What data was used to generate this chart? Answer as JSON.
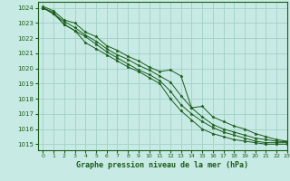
{
  "title": "Graphe pression niveau de la mer (hPa)",
  "bg_color": "#c8eae4",
  "grid_color": "#a0d0c8",
  "line_color": "#1a5c1a",
  "marker_color": "#1a5c1a",
  "xlim": [
    -0.5,
    23
  ],
  "ylim": [
    1014.6,
    1024.4
  ],
  "yticks": [
    1015,
    1016,
    1017,
    1018,
    1019,
    1020,
    1021,
    1022,
    1023,
    1024
  ],
  "xticks": [
    0,
    1,
    2,
    3,
    4,
    5,
    6,
    7,
    8,
    9,
    10,
    11,
    12,
    13,
    14,
    15,
    16,
    17,
    18,
    19,
    20,
    21,
    22,
    23
  ],
  "series": [
    [
      1024.1,
      1023.8,
      1023.2,
      1023.0,
      1022.4,
      1022.1,
      1021.5,
      1021.2,
      1020.8,
      1020.5,
      1020.1,
      1019.8,
      1019.9,
      1019.5,
      1017.4,
      1017.5,
      1016.8,
      1016.5,
      1016.2,
      1016.0,
      1015.7,
      1015.5,
      1015.3,
      1015.2
    ],
    [
      1024.0,
      1023.6,
      1023.1,
      1022.7,
      1022.2,
      1021.8,
      1021.3,
      1020.9,
      1020.6,
      1020.2,
      1019.9,
      1019.5,
      1019.1,
      1018.2,
      1017.4,
      1016.8,
      1016.3,
      1016.0,
      1015.8,
      1015.6,
      1015.4,
      1015.3,
      1015.2,
      1015.15
    ],
    [
      1024.0,
      1023.7,
      1022.9,
      1022.5,
      1022.1,
      1021.6,
      1021.1,
      1020.7,
      1020.3,
      1019.9,
      1019.6,
      1019.2,
      1018.5,
      1017.6,
      1017.0,
      1016.5,
      1016.1,
      1015.8,
      1015.6,
      1015.4,
      1015.2,
      1015.1,
      1015.1,
      1015.1
    ],
    [
      1024.0,
      1023.6,
      1022.9,
      1022.5,
      1021.7,
      1021.3,
      1020.9,
      1020.5,
      1020.1,
      1019.8,
      1019.4,
      1019.0,
      1018.0,
      1017.2,
      1016.6,
      1016.0,
      1015.7,
      1015.5,
      1015.3,
      1015.2,
      1015.1,
      1015.0,
      1015.0,
      1015.0
    ]
  ]
}
